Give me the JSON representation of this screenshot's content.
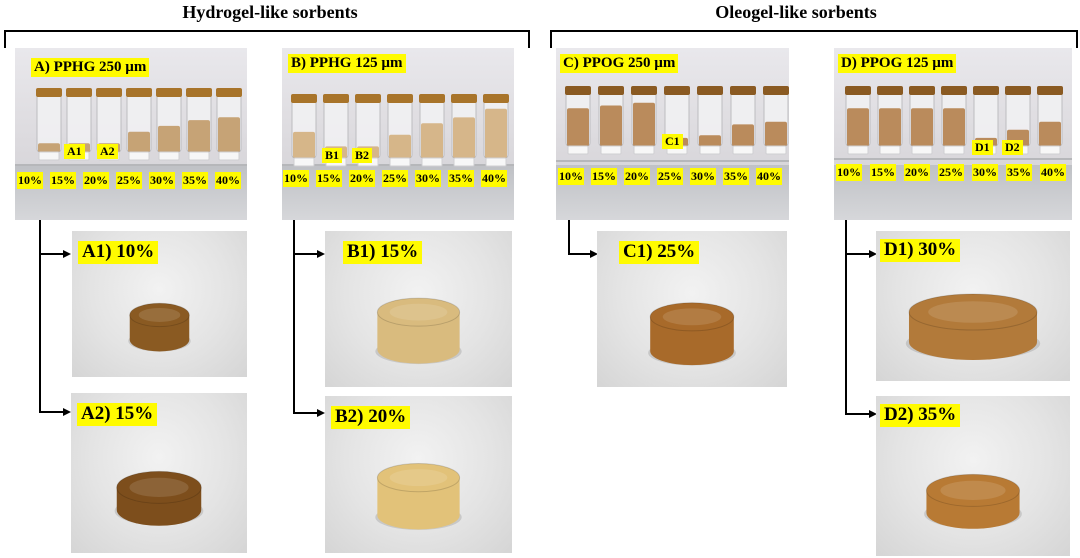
{
  "groups": [
    {
      "title": "Hydrogel-like sorbents"
    },
    {
      "title": "Oleogel-like sorbents"
    }
  ],
  "panels": [
    {
      "label": "A) PPHG 250 µm",
      "percentages": [
        "10%",
        "15%",
        "20%",
        "25%",
        "30%",
        "35%",
        "40%"
      ],
      "vial_tags": [
        "A1",
        "A2"
      ]
    },
    {
      "label": "B) PPHG 125 µm",
      "percentages": [
        "10%",
        "15%",
        "20%",
        "25%",
        "30%",
        "35%",
        "40%"
      ],
      "vial_tags": [
        "B1",
        "B2"
      ]
    },
    {
      "label": "C) PPOG 250 µm",
      "percentages": [
        "10%",
        "15%",
        "20%",
        "25%",
        "30%",
        "35%",
        "40%"
      ],
      "vial_tags": [
        "C1"
      ]
    },
    {
      "label": "D) PPOG 125 µm",
      "percentages": [
        "10%",
        "15%",
        "20%",
        "25%",
        "30%",
        "35%",
        "40%"
      ],
      "vial_tags": [
        "D1",
        "D2"
      ]
    }
  ],
  "photos": [
    {
      "label": "A1) 10%",
      "sample_color": "#8a5a22"
    },
    {
      "label": "A2) 15%",
      "sample_color": "#7d4e1c"
    },
    {
      "label": "B1) 15%",
      "sample_color": "#d9bb7e"
    },
    {
      "label": "B2) 20%",
      "sample_color": "#e2c279"
    },
    {
      "label": "C1) 25%",
      "sample_color": "#a86a2a"
    },
    {
      "label": "D1) 30%",
      "sample_color": "#b27a3a"
    },
    {
      "label": "D2) 35%",
      "sample_color": "#b87a34"
    }
  ]
}
